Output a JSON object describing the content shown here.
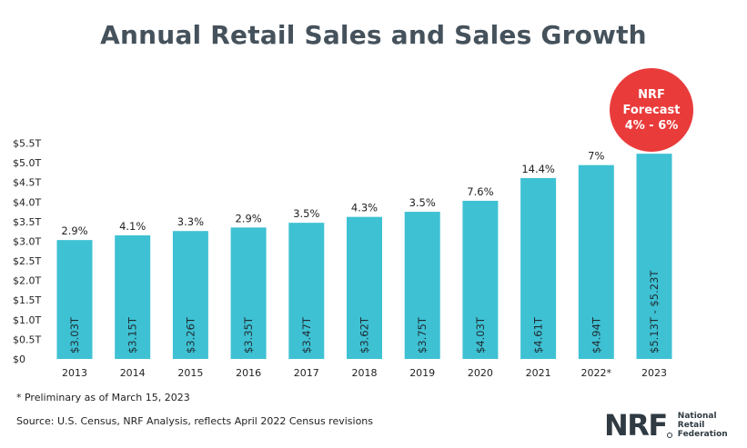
{
  "chart_data": {
    "type": "bar",
    "title": "Annual Retail Sales and Sales Growth",
    "categories": [
      "2013",
      "2014",
      "2015",
      "2016",
      "2017",
      "2018",
      "2019",
      "2020",
      "2021",
      "2022*",
      "2023"
    ],
    "values": [
      3.03,
      3.15,
      3.26,
      3.35,
      3.47,
      3.62,
      3.75,
      4.03,
      4.61,
      4.94,
      5.23
    ],
    "value_labels": [
      "$3.03T",
      "$3.15T",
      "$3.26T",
      "$3.35T",
      "$3.47T",
      "$3.62T",
      "$3.75T",
      "$4.03T",
      "$4.61T",
      "$4.94T",
      "$5.13T - $5.23T"
    ],
    "growth_labels": [
      "2.9%",
      "4.1%",
      "3.3%",
      "2.9%",
      "3.5%",
      "4.3%",
      "3.5%",
      "7.6%",
      "14.4%",
      "7%",
      ""
    ],
    "y_ticks": [
      "$0",
      "$0.5T",
      "$1.0T",
      "$1.5T",
      "$2.0T",
      "$2.5T",
      "$3.0T",
      "$3.5T",
      "$4.0T",
      "$4.5T",
      "$5.0T",
      "$5.5T"
    ],
    "ylim": [
      0,
      5.5
    ],
    "grid": false,
    "bar_color": "#3ec1d3",
    "forecast": {
      "line1": "NRF Forecast",
      "line2": "4% - 6%",
      "color": "#ea3b3b"
    }
  },
  "footnotes": {
    "prelim": "* Preliminary as of March 15, 2023",
    "source": "Source: U.S. Census, NRF Analysis, reflects April 2022 Census revisions"
  },
  "logo": {
    "mark": "NRF",
    "line1": "National",
    "line2": "Retail",
    "line3": "Federation"
  }
}
